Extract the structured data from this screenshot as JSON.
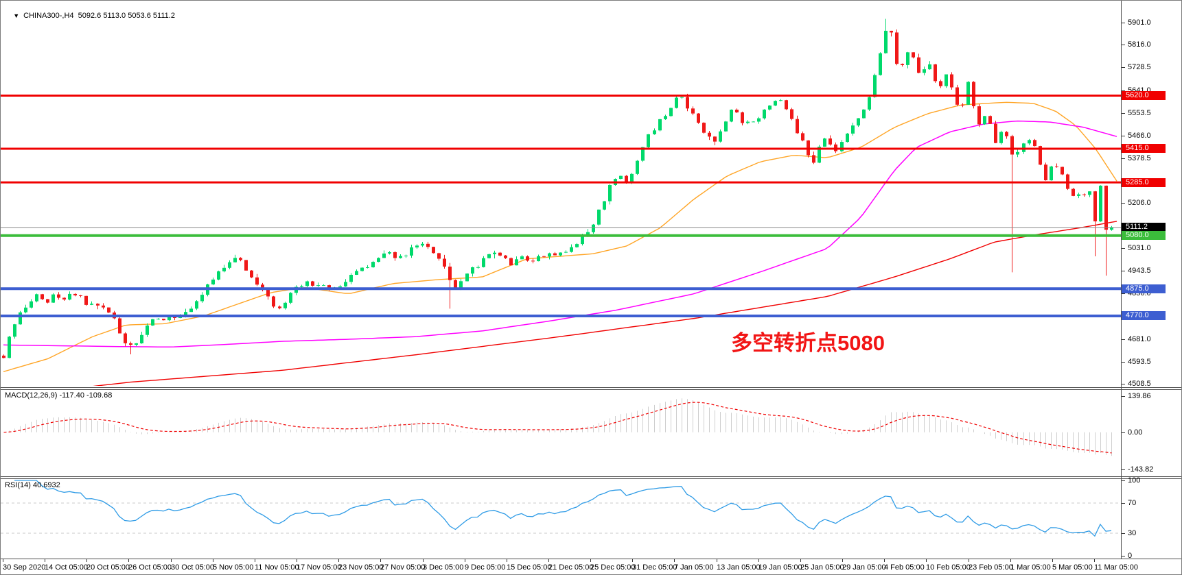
{
  "header": {
    "dropdown_icon": "▼",
    "symbol_period": "CHINA300-,H4",
    "ohlc_text": "5092.6 5113.0 5053.6 5111.2"
  },
  "annotation": {
    "text": "多空转折点5080",
    "color": "#f21515"
  },
  "chart_data": {
    "type": "candlestick",
    "symbol": "CHINA300-",
    "timeframe": "H4",
    "ohlc": {
      "open": 5092.6,
      "high": 5113.0,
      "low": 5053.6,
      "close": 5111.2
    },
    "main_axis": {
      "max": 5986,
      "min": 4495,
      "ticks": [
        5901.0,
        5816.0,
        5728.5,
        5641.0,
        5553.5,
        5466.0,
        5378.5,
        5206.0,
        5031.0,
        4943.5,
        4856.0,
        4681.0,
        4593.5,
        4508.5
      ]
    },
    "levels": [
      {
        "price": 5620.0,
        "label": "5620.0",
        "color": "#f00000",
        "thickness": 3
      },
      {
        "price": 5415.0,
        "label": "5415.0",
        "color": "#f00000",
        "thickness": 3
      },
      {
        "price": 5285.0,
        "label": "5285.0",
        "color": "#f00000",
        "thickness": 3
      },
      {
        "price": 5080.0,
        "label": "5080.0",
        "color": "#3bbd3b",
        "thickness": 4
      },
      {
        "price": 4875.0,
        "label": "4875.0",
        "color": "#3d5ed1",
        "thickness": 4
      },
      {
        "price": 4770.0,
        "label": "4770.0",
        "color": "#3d5ed1",
        "thickness": 4
      }
    ],
    "current_price": {
      "value": 5111.2,
      "label": "5111.2",
      "line_color": "#8a8a8a",
      "badge_bg": "#000000"
    },
    "time_ticks": [
      "30 Sep 2020",
      "14 Oct 05:00",
      "20 Oct 05:00",
      "26 Oct 05:00",
      "30 Oct 05:00",
      "5 Nov 05:00",
      "11 Nov 05:00",
      "17 Nov 05:00",
      "23 Nov 05:00",
      "27 Nov 05:00",
      "3 Dec 05:00",
      "9 Dec 05:00",
      "15 Dec 05:00",
      "21 Dec 05:00",
      "25 Dec 05:00",
      "31 Dec 05:00",
      "7 Jan 05:00",
      "13 Jan 05:00",
      "19 Jan 05:00",
      "25 Jan 05:00",
      "29 Jan 05:00",
      "4 Feb 05:00",
      "10 Feb 05:00",
      "23 Feb 05:00",
      "1 Mar 05:00",
      "5 Mar 05:00",
      "11 Mar 05:00"
    ],
    "candles": {
      "count": 202,
      "seed": 20210311,
      "noise": 11,
      "wick": 13,
      "bull_color": "#00d96b",
      "bear_color": "#f01818",
      "last_close": 5111.2,
      "keypoints": [
        [
          0.0,
          4615
        ],
        [
          0.004,
          4675
        ],
        [
          0.01,
          4735
        ],
        [
          0.016,
          4790
        ],
        [
          0.022,
          4825
        ],
        [
          0.03,
          4845
        ],
        [
          0.038,
          4818
        ],
        [
          0.046,
          4850
        ],
        [
          0.054,
          4832
        ],
        [
          0.062,
          4858
        ],
        [
          0.07,
          4838
        ],
        [
          0.078,
          4808
        ],
        [
          0.086,
          4822
        ],
        [
          0.094,
          4788
        ],
        [
          0.1,
          4748
        ],
        [
          0.106,
          4698
        ],
        [
          0.112,
          4658
        ],
        [
          0.118,
          4650
        ],
        [
          0.124,
          4698
        ],
        [
          0.13,
          4738
        ],
        [
          0.136,
          4758
        ],
        [
          0.142,
          4742
        ],
        [
          0.15,
          4768
        ],
        [
          0.156,
          4744
        ],
        [
          0.162,
          4778
        ],
        [
          0.168,
          4798
        ],
        [
          0.175,
          4838
        ],
        [
          0.182,
          4878
        ],
        [
          0.19,
          4918
        ],
        [
          0.198,
          4948
        ],
        [
          0.205,
          4983
        ],
        [
          0.212,
          5000
        ],
        [
          0.218,
          4958
        ],
        [
          0.225,
          4913
        ],
        [
          0.232,
          4873
        ],
        [
          0.24,
          4838
        ],
        [
          0.246,
          4803
        ],
        [
          0.252,
          4818
        ],
        [
          0.258,
          4853
        ],
        [
          0.266,
          4888
        ],
        [
          0.274,
          4903
        ],
        [
          0.282,
          4878
        ],
        [
          0.29,
          4893
        ],
        [
          0.298,
          4868
        ],
        [
          0.306,
          4898
        ],
        [
          0.314,
          4923
        ],
        [
          0.322,
          4948
        ],
        [
          0.33,
          4973
        ],
        [
          0.338,
          4998
        ],
        [
          0.346,
          5018
        ],
        [
          0.354,
          4993
        ],
        [
          0.362,
          5008
        ],
        [
          0.37,
          5033
        ],
        [
          0.378,
          5053
        ],
        [
          0.386,
          5028
        ],
        [
          0.394,
          4988
        ],
        [
          0.4,
          4948
        ],
        [
          0.405,
          4898
        ],
        [
          0.41,
          4878
        ],
        [
          0.416,
          4918
        ],
        [
          0.422,
          4953
        ],
        [
          0.43,
          4973
        ],
        [
          0.438,
          4998
        ],
        [
          0.446,
          5013
        ],
        [
          0.452,
          4988
        ],
        [
          0.458,
          4963
        ],
        [
          0.464,
          4983
        ],
        [
          0.47,
          5003
        ],
        [
          0.476,
          4973
        ],
        [
          0.482,
          4993
        ],
        [
          0.49,
          5013
        ],
        [
          0.498,
          4996
        ],
        [
          0.506,
          5013
        ],
        [
          0.514,
          5038
        ],
        [
          0.52,
          5058
        ],
        [
          0.526,
          5088
        ],
        [
          0.532,
          5128
        ],
        [
          0.538,
          5178
        ],
        [
          0.544,
          5238
        ],
        [
          0.55,
          5288
        ],
        [
          0.556,
          5318
        ],
        [
          0.562,
          5278
        ],
        [
          0.568,
          5328
        ],
        [
          0.574,
          5388
        ],
        [
          0.58,
          5448
        ],
        [
          0.586,
          5488
        ],
        [
          0.592,
          5518
        ],
        [
          0.598,
          5553
        ],
        [
          0.604,
          5588
        ],
        [
          0.61,
          5618
        ],
        [
          0.616,
          5588
        ],
        [
          0.622,
          5543
        ],
        [
          0.628,
          5508
        ],
        [
          0.634,
          5468
        ],
        [
          0.64,
          5438
        ],
        [
          0.646,
          5478
        ],
        [
          0.652,
          5528
        ],
        [
          0.658,
          5563
        ],
        [
          0.664,
          5538
        ],
        [
          0.67,
          5503
        ],
        [
          0.676,
          5523
        ],
        [
          0.682,
          5543
        ],
        [
          0.688,
          5568
        ],
        [
          0.694,
          5598
        ],
        [
          0.7,
          5613
        ],
        [
          0.706,
          5568
        ],
        [
          0.712,
          5518
        ],
        [
          0.718,
          5468
        ],
        [
          0.724,
          5418
        ],
        [
          0.728,
          5378
        ],
        [
          0.732,
          5358
        ],
        [
          0.736,
          5418
        ],
        [
          0.74,
          5458
        ],
        [
          0.746,
          5438
        ],
        [
          0.752,
          5413
        ],
        [
          0.758,
          5448
        ],
        [
          0.764,
          5488
        ],
        [
          0.77,
          5528
        ],
        [
          0.776,
          5568
        ],
        [
          0.781,
          5618
        ],
        [
          0.786,
          5688
        ],
        [
          0.791,
          5778
        ],
        [
          0.796,
          5868
        ],
        [
          0.799,
          5893
        ],
        [
          0.802,
          5838
        ],
        [
          0.805,
          5758
        ],
        [
          0.808,
          5698
        ],
        [
          0.812,
          5743
        ],
        [
          0.816,
          5798
        ],
        [
          0.82,
          5768
        ],
        [
          0.824,
          5728
        ],
        [
          0.828,
          5703
        ],
        [
          0.832,
          5723
        ],
        [
          0.836,
          5743
        ],
        [
          0.84,
          5688
        ],
        [
          0.844,
          5643
        ],
        [
          0.848,
          5668
        ],
        [
          0.852,
          5703
        ],
        [
          0.856,
          5648
        ],
        [
          0.86,
          5588
        ],
        [
          0.864,
          5558
        ],
        [
          0.868,
          5613
        ],
        [
          0.872,
          5688
        ],
        [
          0.876,
          5558
        ],
        [
          0.88,
          5498
        ],
        [
          0.884,
          5538
        ],
        [
          0.888,
          5558
        ],
        [
          0.892,
          5498
        ],
        [
          0.896,
          5438
        ],
        [
          0.9,
          5468
        ],
        [
          0.904,
          5488
        ],
        [
          0.908,
          5428
        ],
        [
          0.912,
          5358
        ],
        [
          0.916,
          5398
        ],
        [
          0.92,
          5438
        ],
        [
          0.924,
          5468
        ],
        [
          0.928,
          5438
        ],
        [
          0.932,
          5398
        ],
        [
          0.936,
          5338
        ],
        [
          0.94,
          5298
        ],
        [
          0.944,
          5343
        ],
        [
          0.948,
          5368
        ],
        [
          0.952,
          5338
        ],
        [
          0.956,
          5298
        ],
        [
          0.96,
          5268
        ],
        [
          0.964,
          5228
        ],
        [
          0.968,
          5248
        ],
        [
          0.972,
          5228
        ],
        [
          0.9755,
          5243
        ],
        [
          0.979,
          5258
        ],
        [
          0.9825,
          5208
        ],
        [
          0.986,
          5118
        ],
        [
          0.9895,
          5288
        ],
        [
          0.993,
          5168
        ],
        [
          0.9965,
          5043
        ],
        [
          1.0,
          5111.2
        ]
      ],
      "spikes": [
        {
          "f": 0.112,
          "low": 4622
        },
        {
          "f": 0.405,
          "low": 4798
        },
        {
          "f": 0.796,
          "high": 5916
        },
        {
          "f": 0.908,
          "low": 4938
        },
        {
          "f": 0.986,
          "low": 5000
        },
        {
          "f": 0.9965,
          "low": 4925
        }
      ]
    },
    "moving_averages": [
      {
        "name": "ma-fast-orange",
        "color": "#ffa526",
        "width": 1.4,
        "keypoints": [
          [
            0.0,
            4555
          ],
          [
            0.04,
            4605
          ],
          [
            0.08,
            4690
          ],
          [
            0.11,
            4735
          ],
          [
            0.145,
            4740
          ],
          [
            0.18,
            4770
          ],
          [
            0.21,
            4815
          ],
          [
            0.24,
            4860
          ],
          [
            0.27,
            4880
          ],
          [
            0.31,
            4855
          ],
          [
            0.35,
            4895
          ],
          [
            0.39,
            4910
          ],
          [
            0.43,
            4920
          ],
          [
            0.47,
            4990
          ],
          [
            0.5,
            5000
          ],
          [
            0.53,
            5010
          ],
          [
            0.56,
            5040
          ],
          [
            0.59,
            5110
          ],
          [
            0.62,
            5220
          ],
          [
            0.65,
            5310
          ],
          [
            0.68,
            5365
          ],
          [
            0.71,
            5390
          ],
          [
            0.74,
            5380
          ],
          [
            0.77,
            5420
          ],
          [
            0.8,
            5497
          ],
          [
            0.83,
            5550
          ],
          [
            0.86,
            5584
          ],
          [
            0.9,
            5594
          ],
          [
            0.925,
            5590
          ],
          [
            0.945,
            5560
          ],
          [
            0.963,
            5505
          ],
          [
            0.981,
            5415
          ],
          [
            1.0,
            5290
          ]
        ]
      },
      {
        "name": "ma-medium-magenta",
        "color": "#ff00ff",
        "width": 1.5,
        "keypoints": [
          [
            0.0,
            4658
          ],
          [
            0.05,
            4655
          ],
          [
            0.1,
            4652
          ],
          [
            0.15,
            4650
          ],
          [
            0.2,
            4660
          ],
          [
            0.25,
            4672
          ],
          [
            0.31,
            4680
          ],
          [
            0.37,
            4690
          ],
          [
            0.43,
            4712
          ],
          [
            0.49,
            4750
          ],
          [
            0.55,
            4792
          ],
          [
            0.62,
            4855
          ],
          [
            0.68,
            4940
          ],
          [
            0.74,
            5030
          ],
          [
            0.77,
            5150
          ],
          [
            0.8,
            5330
          ],
          [
            0.82,
            5420
          ],
          [
            0.85,
            5480
          ],
          [
            0.88,
            5510
          ],
          [
            0.91,
            5522
          ],
          [
            0.94,
            5518
          ],
          [
            0.97,
            5498
          ],
          [
            1.0,
            5462
          ]
        ]
      },
      {
        "name": "ma-slow-red",
        "color": "#f00000",
        "width": 1.4,
        "keypoints": [
          [
            0.0,
            4460
          ],
          [
            0.115,
            4515
          ],
          [
            0.25,
            4560
          ],
          [
            0.37,
            4620
          ],
          [
            0.5,
            4690
          ],
          [
            0.62,
            4760
          ],
          [
            0.74,
            4845
          ],
          [
            0.8,
            4920
          ],
          [
            0.85,
            4990
          ],
          [
            0.89,
            5055
          ],
          [
            0.93,
            5085
          ],
          [
            0.97,
            5112
          ],
          [
            1.0,
            5135
          ]
        ]
      }
    ],
    "macd": {
      "label_text": "MACD(12,26,9) -117.40 -109.68",
      "fast": 12,
      "slow": 26,
      "signal": 9,
      "value": -117.4,
      "signal_value": -109.68,
      "axis": {
        "max": 139.86,
        "min": -143.82,
        "ticks": [
          "139.86",
          "0.00",
          "-143.82"
        ]
      },
      "hist_color": "#cfcfcf",
      "signal_color": "#f00000"
    },
    "rsi": {
      "label_text": "RSI(14) 40.6932",
      "period": 14,
      "value": 40.6932,
      "axis": {
        "max": 100,
        "min": 0,
        "ticks": [
          "100",
          "70",
          "30",
          "0"
        ]
      },
      "levels": [
        70,
        30
      ],
      "line_color": "#2e9be6",
      "level_color": "#c8c8c8"
    }
  }
}
